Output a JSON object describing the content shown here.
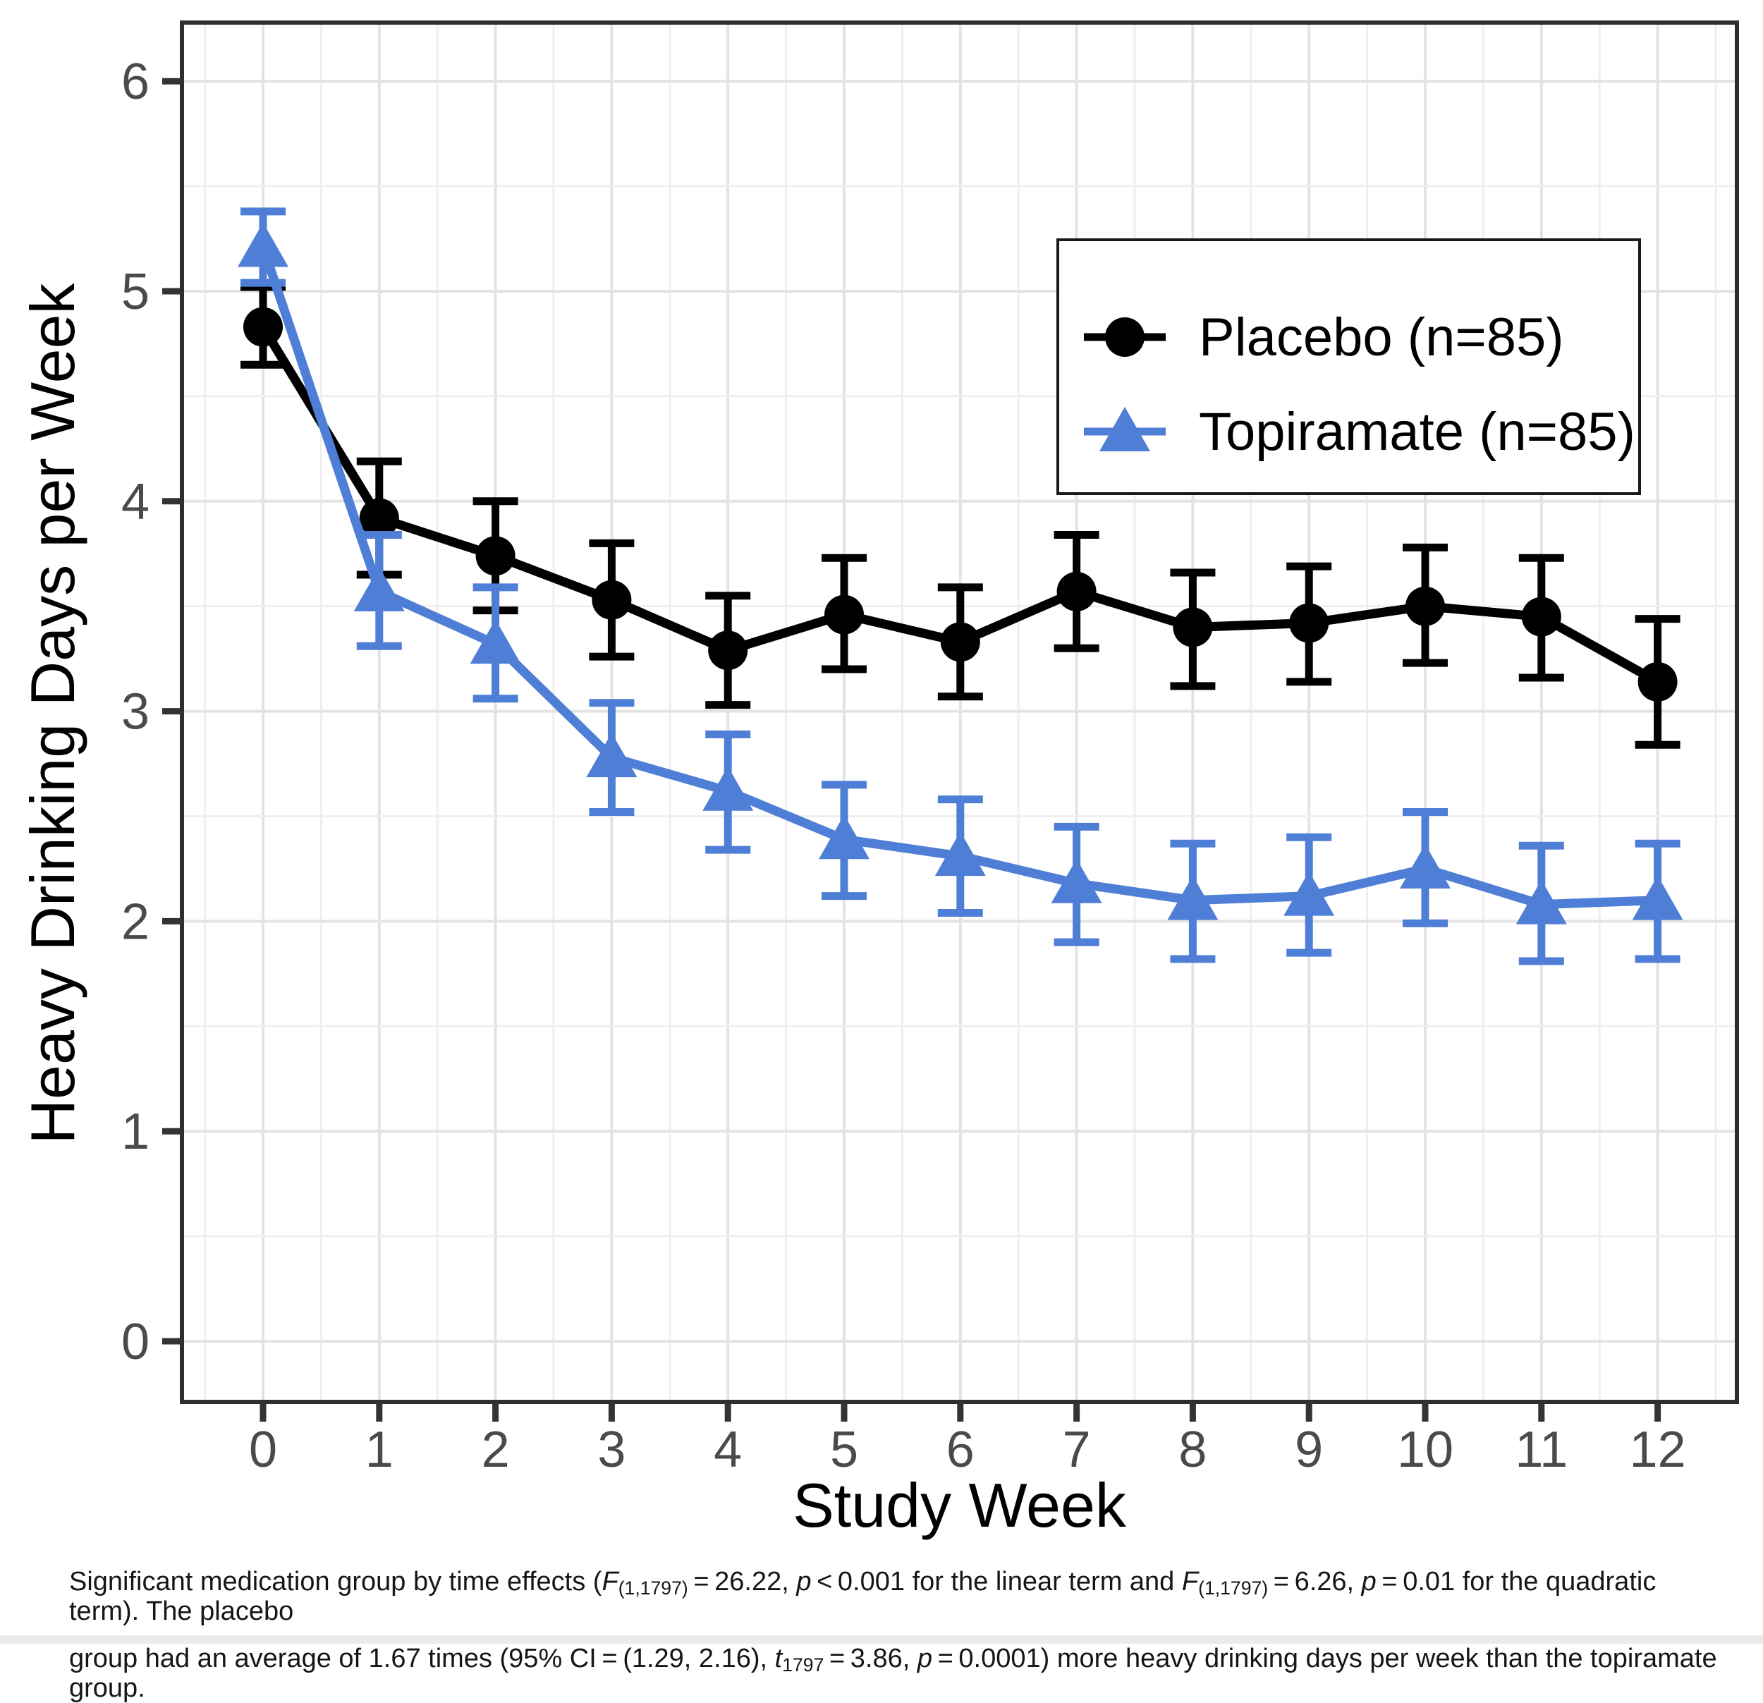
{
  "figure": {
    "bottom_strip_color": "#ebebeb",
    "background_color": "#ffffff"
  },
  "chart_data": {
    "type": "line",
    "title": "",
    "xlabel": "Study Week",
    "ylabel": "Heavy Drinking Days per Week",
    "x": [
      0,
      1,
      2,
      3,
      4,
      5,
      6,
      7,
      8,
      9,
      10,
      11,
      12
    ],
    "x_ticks": [
      0,
      1,
      2,
      3,
      4,
      5,
      6,
      7,
      8,
      9,
      10,
      11,
      12
    ],
    "y_ticks": [
      0,
      1,
      2,
      3,
      4,
      5,
      6
    ],
    "xlim": [
      -0.7,
      12.7
    ],
    "ylim": [
      -0.29,
      6.28
    ],
    "grid": "major at integers, minor at 0.5 steps, light gray on white",
    "legend_position": "inside upper right, boxed",
    "error_bars": "95% CI with caps",
    "series": [
      {
        "name": "Placebo (n=85)",
        "marker": "circle",
        "color": "#000000",
        "values": [
          4.83,
          3.92,
          3.74,
          3.53,
          3.29,
          3.46,
          3.33,
          3.57,
          3.4,
          3.42,
          3.5,
          3.45,
          3.14
        ],
        "ci_low": [
          4.65,
          3.65,
          3.48,
          3.26,
          3.03,
          3.2,
          3.07,
          3.3,
          3.12,
          3.14,
          3.23,
          3.16,
          2.84
        ],
        "ci_high": [
          5.02,
          4.19,
          4.0,
          3.8,
          3.55,
          3.73,
          3.59,
          3.84,
          3.66,
          3.69,
          3.78,
          3.73,
          3.44
        ]
      },
      {
        "name": "Topiramate (n=85)",
        "marker": "triangle",
        "color": "#4f7ed6",
        "values": [
          5.21,
          3.57,
          3.32,
          2.78,
          2.62,
          2.39,
          2.31,
          2.18,
          2.1,
          2.12,
          2.25,
          2.08,
          2.1
        ],
        "ci_low": [
          5.04,
          3.31,
          3.06,
          2.52,
          2.34,
          2.12,
          2.04,
          1.9,
          1.82,
          1.85,
          1.99,
          1.81,
          1.82
        ],
        "ci_high": [
          5.38,
          3.84,
          3.59,
          3.04,
          2.89,
          2.65,
          2.58,
          2.45,
          2.37,
          2.4,
          2.52,
          2.36,
          2.37
        ]
      }
    ],
    "colors": {
      "panel_border": "#2e2e2e",
      "grid_major": "#e3e3e3",
      "grid_minor": "#efefef",
      "tick": "#333333",
      "tick_label": "#4a4a4a",
      "axis_title": "#000000",
      "legend_border": "#1a1a1a"
    }
  },
  "caption": {
    "line1": [
      [
        "n",
        "Significant medication group by time effects ("
      ],
      [
        "i",
        "F"
      ],
      [
        "sub",
        "(1,1797)"
      ],
      [
        "n",
        " = 26.22, "
      ],
      [
        "i",
        "p"
      ],
      [
        "n",
        " < 0.001 for the linear term and "
      ],
      [
        "i",
        "F"
      ],
      [
        "sub",
        "(1,1797)"
      ],
      [
        "n",
        " = 6.26, "
      ],
      [
        "i",
        "p"
      ],
      [
        "n",
        " = 0.01 for the quadratic term). The placebo"
      ]
    ],
    "line2": [
      [
        "n",
        "group had an average of 1.67 times (95% CI = (1.29, 2.16), "
      ],
      [
        "i",
        "t"
      ],
      [
        "sub",
        "1797"
      ],
      [
        "n",
        " = 3.86, "
      ],
      [
        "i",
        "p"
      ],
      [
        "n",
        " = 0.0001) more heavy drinking days per week than the topiramate group."
      ]
    ]
  }
}
